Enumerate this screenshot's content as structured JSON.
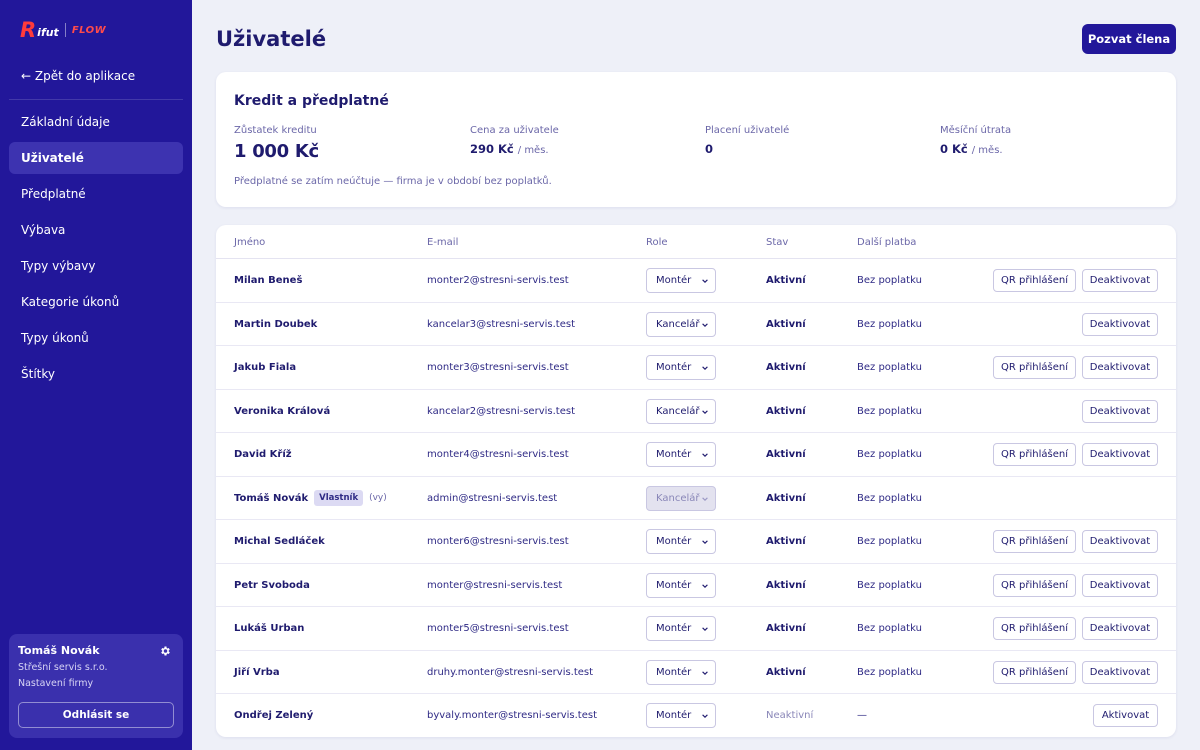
{
  "brand": {
    "logo_r": "R",
    "logo_word": "ifut",
    "logo_flow": "FLOW"
  },
  "sidebar": {
    "back_label": "← Zpět do aplikace",
    "items": [
      {
        "label": "Základní údaje",
        "active": false
      },
      {
        "label": "Uživatelé",
        "active": true
      },
      {
        "label": "Předplatné",
        "active": false
      },
      {
        "label": "Výbava",
        "active": false
      },
      {
        "label": "Typy výbavy",
        "active": false
      },
      {
        "label": "Kategorie úkonů",
        "active": false
      },
      {
        "label": "Typy úkonů",
        "active": false
      },
      {
        "label": "Štítky",
        "active": false
      }
    ],
    "user": {
      "name": "Tomáš Novák",
      "company": "Střešní servis s.r.o.",
      "settings_link": "Nastavení firmy",
      "logout_label": "Odhlásit se"
    }
  },
  "header": {
    "title": "Uživatelé",
    "invite_label": "Pozvat člena"
  },
  "credit": {
    "title": "Kredit a předplatné",
    "balance_label": "Zůstatek kreditu",
    "balance_value": "1 000 Kč",
    "price_label": "Cena za uživatele",
    "price_value": "290 Kč",
    "price_unit": "/ měs.",
    "paid_users_label": "Placení uživatelé",
    "paid_users_value": "0",
    "monthly_label": "Měsíční útrata",
    "monthly_value": "0 Kč",
    "monthly_unit": "/ měs.",
    "note": "Předplatné se zatím neúčtuje — firma je v období bez poplatků."
  },
  "table": {
    "headers": {
      "name": "Jméno",
      "email": "E-mail",
      "role": "Role",
      "status": "Stav",
      "next_payment": "Další platba"
    },
    "qr_label": "QR přihlášení",
    "deactivate_label": "Deaktivovat",
    "activate_label": "Aktivovat",
    "rows": [
      {
        "name": "Milan Beneš",
        "email": "monter2@stresni-servis.test",
        "role": "Montér",
        "status": "Aktivní",
        "payment": "Bez poplatku",
        "qr": true,
        "action": "deactivate"
      },
      {
        "name": "Martin Doubek",
        "email": "kancelar3@stresni-servis.test",
        "role": "Kancelář",
        "status": "Aktivní",
        "payment": "Bez poplatku",
        "qr": false,
        "action": "deactivate"
      },
      {
        "name": "Jakub Fiala",
        "email": "monter3@stresni-servis.test",
        "role": "Montér",
        "status": "Aktivní",
        "payment": "Bez poplatku",
        "qr": true,
        "action": "deactivate"
      },
      {
        "name": "Veronika Králová",
        "email": "kancelar2@stresni-servis.test",
        "role": "Kancelář",
        "status": "Aktivní",
        "payment": "Bez poplatku",
        "qr": false,
        "action": "deactivate"
      },
      {
        "name": "David Kříž",
        "email": "monter4@stresni-servis.test",
        "role": "Montér",
        "status": "Aktivní",
        "payment": "Bez poplatku",
        "qr": true,
        "action": "deactivate"
      },
      {
        "name": "Tomáš Novák",
        "badge": "Vlastník",
        "you": "(vy)",
        "email": "admin@stresni-servis.test",
        "role": "Kancelář",
        "role_disabled": true,
        "status": "Aktivní",
        "payment": "Bez poplatku",
        "qr": false,
        "action": "none"
      },
      {
        "name": "Michal Sedláček",
        "email": "monter6@stresni-servis.test",
        "role": "Montér",
        "status": "Aktivní",
        "payment": "Bez poplatku",
        "qr": true,
        "action": "deactivate"
      },
      {
        "name": "Petr Svoboda",
        "email": "monter@stresni-servis.test",
        "role": "Montér",
        "status": "Aktivní",
        "payment": "Bez poplatku",
        "qr": true,
        "action": "deactivate"
      },
      {
        "name": "Lukáš Urban",
        "email": "monter5@stresni-servis.test",
        "role": "Montér",
        "status": "Aktivní",
        "payment": "Bez poplatku",
        "qr": true,
        "action": "deactivate"
      },
      {
        "name": "Jiří Vrba",
        "email": "druhy.monter@stresni-servis.test",
        "role": "Montér",
        "status": "Aktivní",
        "payment": "Bez poplatku",
        "qr": true,
        "action": "deactivate"
      },
      {
        "name": "Ondřej Zelený",
        "email": "byvaly.monter@stresni-servis.test",
        "role": "Montér",
        "status": "Neaktivní",
        "payment": "—",
        "qr": false,
        "action": "activate"
      }
    ]
  },
  "colors": {
    "sidebar": "#22179a",
    "accent": "#22179a",
    "logo_red": "#ff3b3b",
    "background": "#eef0f8"
  }
}
